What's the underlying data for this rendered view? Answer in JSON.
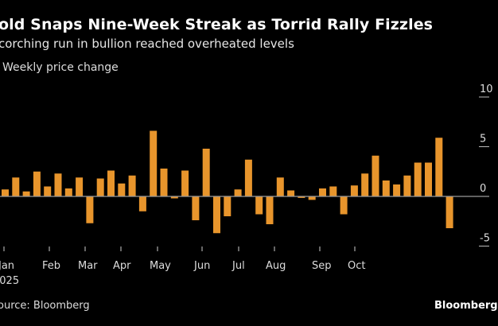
{
  "header": {
    "title": "old Snaps Nine-Week Streak as Torrid Rally Fizzles",
    "subtitle": "corching run in bullion reached overheated levels",
    "unit_label": "Weekly price change"
  },
  "footer": {
    "source": "ource: Bloomberg",
    "logo": "Bloomberg"
  },
  "colors": {
    "bar": "#E8952C",
    "background": "#000000",
    "zero_line": "#9a9a9a"
  },
  "chart_data": {
    "type": "bar",
    "title": "",
    "xlabel": "",
    "ylabel": "Weekly price change",
    "ylim": [
      -5,
      10
    ],
    "y_ticks": [
      "10",
      "5",
      "0",
      "-5"
    ],
    "y_tick_values": [
      10,
      5,
      0,
      -5
    ],
    "x_tick_labels": [
      "Jan",
      "Feb",
      "Mar",
      "Apr",
      "May",
      "Jun",
      "Jul",
      "Aug",
      "Sep",
      "Oct"
    ],
    "x_year_label": "2025",
    "grid": "horizontal, right edge only",
    "values": [
      0.7,
      1.9,
      0.5,
      2.5,
      1.0,
      2.3,
      0.8,
      1.9,
      -2.7,
      1.8,
      2.6,
      1.3,
      2.1,
      -1.5,
      6.6,
      2.8,
      -0.2,
      2.6,
      -2.4,
      4.8,
      -3.7,
      -2.0,
      0.7,
      3.7,
      -1.8,
      -2.8,
      1.9,
      0.6,
      -0.15,
      -0.35,
      0.8,
      1.0,
      -1.8,
      1.1,
      2.3,
      4.1,
      1.6,
      1.2,
      2.1,
      3.4,
      3.4,
      5.9,
      -3.2
    ]
  }
}
